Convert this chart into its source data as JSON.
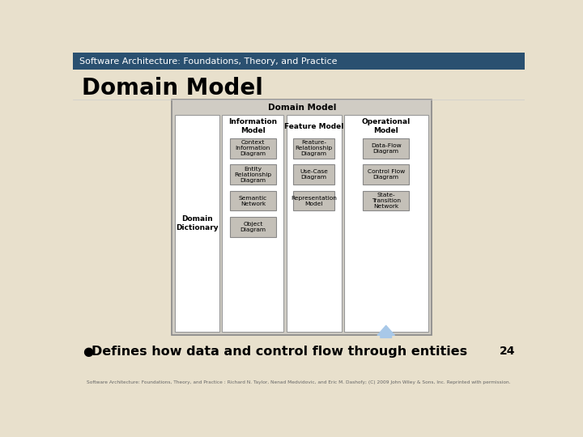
{
  "title_bar_text": "Software Architecture: Foundations, Theory, and Practice",
  "title_bar_bg": "#2a5070",
  "title_bar_text_color": "#ffffff",
  "slide_bg": "#e8e0cc",
  "main_title": "Domain Model",
  "main_title_color": "#000000",
  "footer_text": "Software Architecture: Foundations, Theory, and Practice : Richard N. Taylor, Nenad Medvidovic, and Eric M. Dashofy; (C) 2009 John Wiley & Sons, Inc. Reprinted with permission.",
  "bullet_text": "Defines how data and control flow through entities",
  "page_number": "24",
  "diagram_bg": "#d0ccc4",
  "diagram_title": "Domain Model",
  "diagram_border": "#888888",
  "white_col_bg": "#ffffff",
  "white_col_border": "#999999",
  "box_bg": "#c4c0b8",
  "box_border": "#888888",
  "col_headers": [
    "Information\nModel",
    "Feature Model",
    "Operational\nModel"
  ],
  "domain_dict_label": "Domain\nDictionary",
  "info_model_boxes": [
    "Context\nInformation\nDiagram",
    "Entity\nRelationship\nDiagram",
    "Semantic\nNetwork",
    "Object\nDiagram"
  ],
  "feature_model_boxes": [
    "Feature-\nRelationship\nDiagram",
    "Use-Case\nDiagram",
    "Representation\nModel"
  ],
  "operational_model_boxes": [
    "Data-Flow\nDiagram",
    "Control Flow\nDiagram",
    "State-\nTransition\nNetwork"
  ],
  "arrow_color": "#a8c8e8",
  "arrow_edge_color": "#6090b8"
}
